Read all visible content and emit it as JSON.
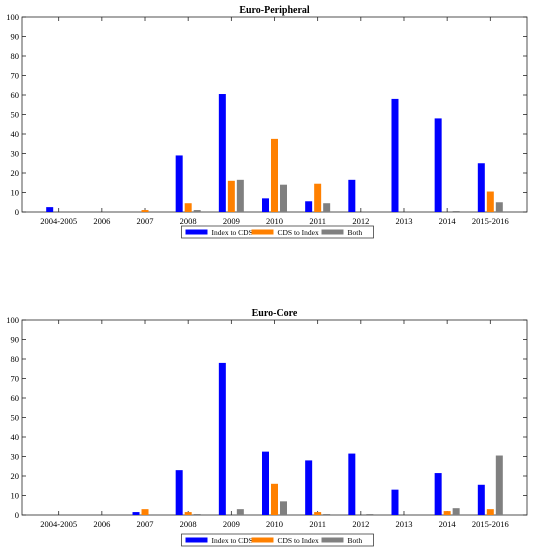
{
  "chart_data": [
    {
      "type": "bar",
      "title": "Euro-Peripheral",
      "categories": [
        "2004-2005",
        "2006",
        "2007",
        "2008",
        "2009",
        "2010",
        "2011",
        "2012",
        "2013",
        "2014",
        "2015-2016"
      ],
      "series": [
        {
          "name": "Index to CDS",
          "color": "#0000ff",
          "values": [
            2.5,
            0,
            0,
            29,
            60.5,
            7,
            5.5,
            16.5,
            58,
            48,
            25
          ]
        },
        {
          "name": "CDS to Index",
          "color": "#ff8000",
          "values": [
            0,
            0,
            1,
            4.5,
            16,
            37.5,
            14.5,
            0,
            0,
            0,
            10.5
          ]
        },
        {
          "name": "Both",
          "color": "#808080",
          "values": [
            0,
            0,
            0,
            1,
            16.5,
            14,
            4.5,
            0,
            0,
            0.5,
            5
          ]
        }
      ],
      "xlabel": "",
      "ylabel": "",
      "ylim": [
        0,
        100
      ],
      "yticks": [
        0,
        10,
        20,
        30,
        40,
        50,
        60,
        70,
        80,
        90,
        100
      ],
      "grid": false,
      "legend_position": "bottom-center"
    },
    {
      "type": "bar",
      "title": "Euro-Core",
      "categories": [
        "2004-2005",
        "2006",
        "2007",
        "2008",
        "2009",
        "2010",
        "2011",
        "2012",
        "2013",
        "2014",
        "2015-2016"
      ],
      "series": [
        {
          "name": "Index to CDS",
          "color": "#0000ff",
          "values": [
            0,
            0,
            1.5,
            23,
            78,
            32.5,
            28,
            31.5,
            13,
            21.5,
            15.5
          ]
        },
        {
          "name": "CDS to Index",
          "color": "#ff8000",
          "values": [
            0,
            0,
            3,
            1.5,
            0,
            16,
            1.5,
            0,
            0,
            2,
            3
          ]
        },
        {
          "name": "Both",
          "color": "#808080",
          "values": [
            0,
            0,
            0,
            0.5,
            3,
            7,
            0.5,
            0.5,
            0,
            3.5,
            30.5
          ]
        }
      ],
      "xlabel": "",
      "ylabel": "",
      "ylim": [
        0,
        100
      ],
      "yticks": [
        0,
        10,
        20,
        30,
        40,
        50,
        60,
        70,
        80,
        90,
        100
      ],
      "grid": false,
      "legend_position": "bottom-center"
    }
  ]
}
